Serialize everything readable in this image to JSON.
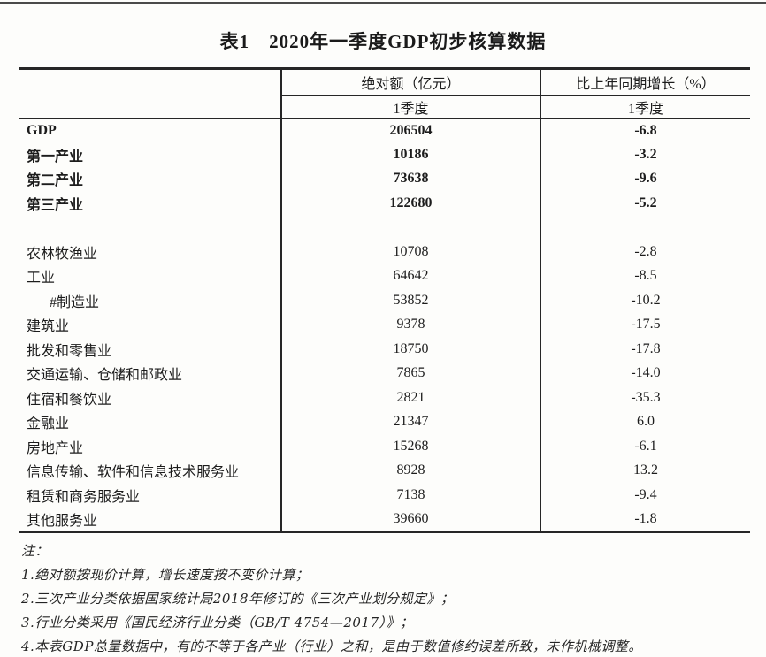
{
  "title": "表1　2020年一季度GDP初步核算数据",
  "colors": {
    "border": "#262626",
    "text": "#1c1c1c",
    "background": "#fdfdfb"
  },
  "table": {
    "col_headers": [
      "绝对额（亿元）",
      "比上年同期增长（%）"
    ],
    "sub_headers": [
      "1季度",
      "1季度"
    ],
    "rows": [
      {
        "label": "GDP",
        "value": "206504",
        "growth": "-6.8",
        "bold": true
      },
      {
        "label": "第一产业",
        "value": "10186",
        "growth": "-3.2",
        "bold": true
      },
      {
        "label": "第二产业",
        "value": "73638",
        "growth": "-9.6",
        "bold": true
      },
      {
        "label": "第三产业",
        "value": "122680",
        "growth": "-5.2",
        "bold": true
      },
      {
        "label": "",
        "value": "",
        "growth": "",
        "spacer": true
      },
      {
        "label": "农林牧渔业",
        "value": "10708",
        "growth": "-2.8"
      },
      {
        "label": "工业",
        "value": "64642",
        "growth": "-8.5"
      },
      {
        "label": "#制造业",
        "value": "53852",
        "growth": "-10.2",
        "indent": true
      },
      {
        "label": "建筑业",
        "value": "9378",
        "growth": "-17.5"
      },
      {
        "label": "批发和零售业",
        "value": "18750",
        "growth": "-17.8"
      },
      {
        "label": "交通运输、仓储和邮政业",
        "value": "7865",
        "growth": "-14.0"
      },
      {
        "label": "住宿和餐饮业",
        "value": "2821",
        "growth": "-35.3"
      },
      {
        "label": "金融业",
        "value": "21347",
        "growth": "6.0"
      },
      {
        "label": "房地产业",
        "value": "15268",
        "growth": "-6.1"
      },
      {
        "label": "信息传输、软件和信息技术服务业",
        "value": "8928",
        "growth": "13.2"
      },
      {
        "label": "租赁和商务服务业",
        "value": "7138",
        "growth": "-9.4"
      },
      {
        "label": "其他服务业",
        "value": "39660",
        "growth": "-1.8"
      }
    ]
  },
  "notes": {
    "label": "注：",
    "items": [
      "1.绝对额按现价计算，增长速度按不变价计算；",
      "2.三次产业分类依据国家统计局2018年修订的《三次产业划分规定》；",
      "3.行业分类采用《国民经济行业分类（GB/T 4754—2017）》；",
      "4.本表GDP总量数据中，有的不等于各产业（行业）之和，是由于数值修约误差所致，未作机械调整。"
    ]
  }
}
